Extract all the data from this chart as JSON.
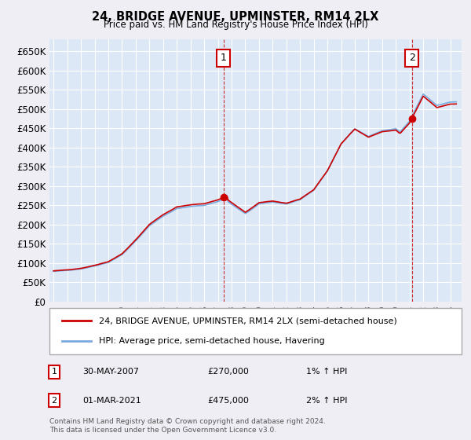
{
  "title": "24, BRIDGE AVENUE, UPMINSTER, RM14 2LX",
  "subtitle": "Price paid vs. HM Land Registry's House Price Index (HPI)",
  "ylim": [
    0,
    680000
  ],
  "yticks": [
    0,
    50000,
    100000,
    150000,
    200000,
    250000,
    300000,
    350000,
    400000,
    450000,
    500000,
    550000,
    600000,
    650000
  ],
  "x_start_year": 1995,
  "x_end_year": 2024,
  "background_color": "#dce8f5",
  "grid_color": "#ffffff",
  "fig_bg_color": "#f0eef5",
  "sale1": {
    "year": 2007.41,
    "price": 270000,
    "label": "1",
    "date": "30-MAY-2007",
    "hpi_change": "1% ↑ HPI"
  },
  "sale2": {
    "year": 2021.17,
    "price": 475000,
    "label": "2",
    "date": "01-MAR-2021",
    "hpi_change": "2% ↑ HPI"
  },
  "legend_line1": "24, BRIDGE AVENUE, UPMINSTER, RM14 2LX (semi-detached house)",
  "legend_line2": "HPI: Average price, semi-detached house, Havering",
  "footnote": "Contains HM Land Registry data © Crown copyright and database right 2024.\nThis data is licensed under the Open Government Licence v3.0.",
  "line_color_red": "#cc0000",
  "line_color_blue": "#7aaadd",
  "marker_color": "#cc0000",
  "box_color": "#cc0000"
}
